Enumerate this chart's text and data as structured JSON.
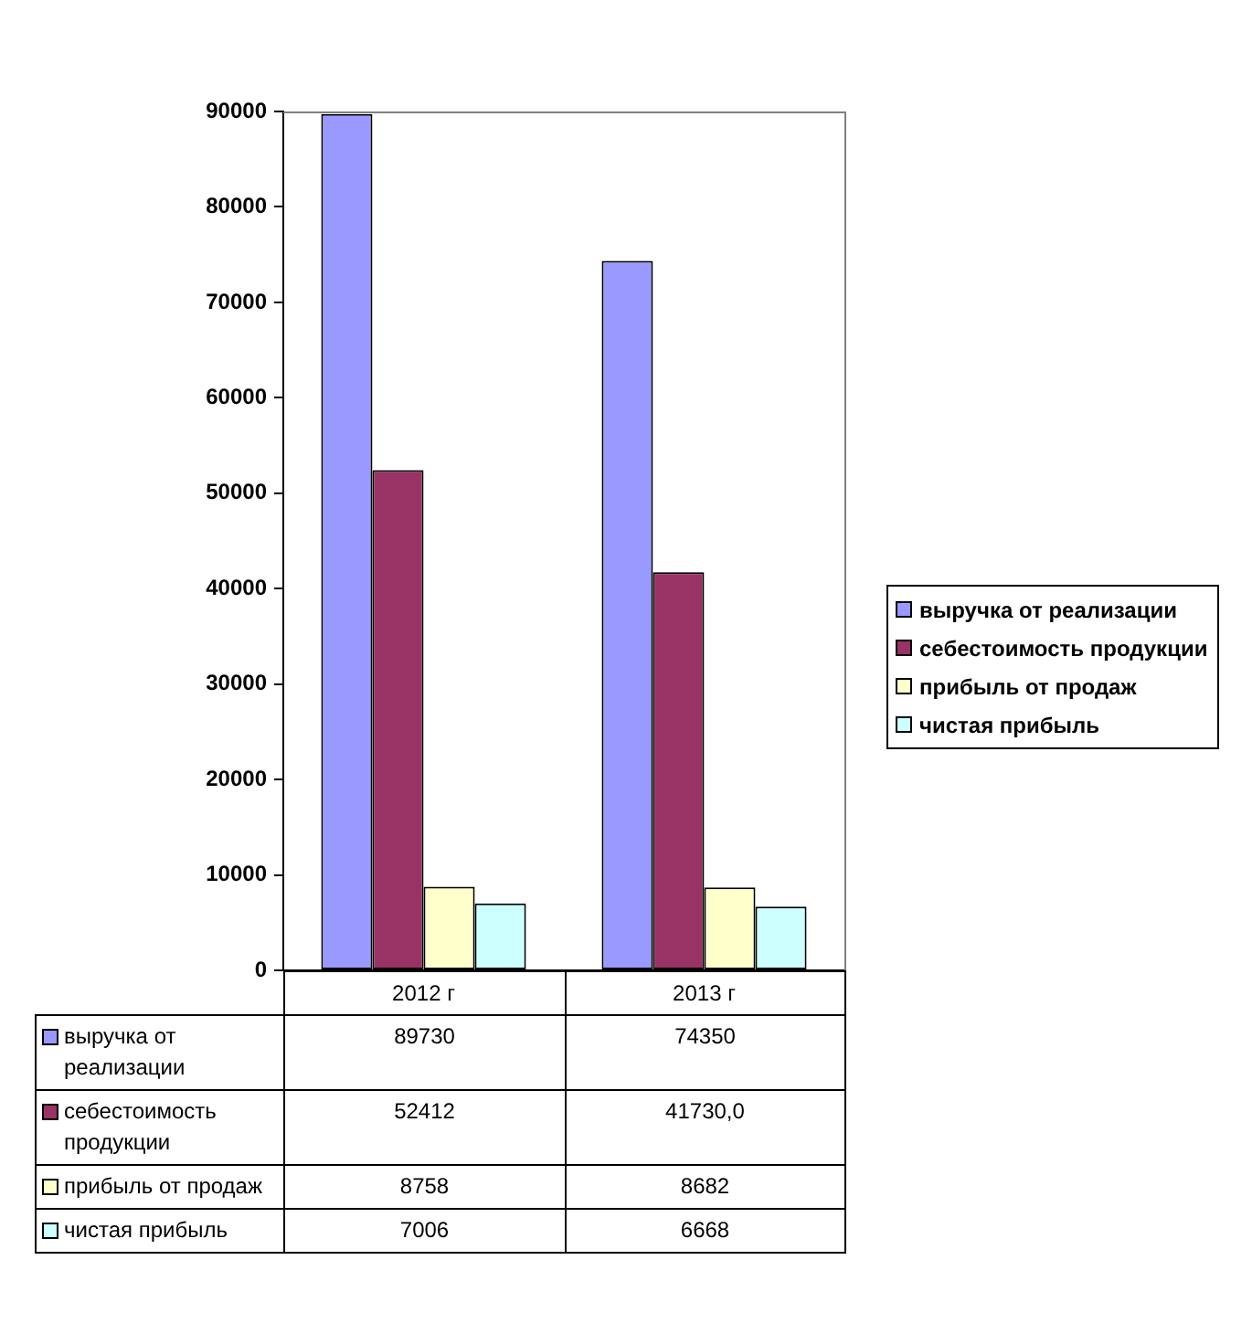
{
  "chart_data": {
    "type": "bar",
    "categories": [
      "2012 г",
      "2013 г"
    ],
    "series": [
      {
        "name": "выручка от реализации",
        "color": "#9999ff",
        "values": [
          89730,
          74350
        ],
        "value_labels": [
          "89730",
          "74350"
        ]
      },
      {
        "name": "себестоимость продукции",
        "color": "#993366",
        "values": [
          52412,
          41730
        ],
        "value_labels": [
          "52412",
          "41730,0"
        ]
      },
      {
        "name": "прибыль от продаж",
        "color": "#ffffcc",
        "values": [
          8758,
          8682
        ],
        "value_labels": [
          "8758",
          "8682"
        ]
      },
      {
        "name": "чистая прибыль",
        "color": "#ccffff",
        "values": [
          7006,
          6668
        ],
        "value_labels": [
          "7006",
          "6668"
        ]
      }
    ],
    "ylim": [
      0,
      90000
    ],
    "yticks": [
      0,
      10000,
      20000,
      30000,
      40000,
      50000,
      60000,
      70000,
      80000,
      90000
    ],
    "grid": false,
    "legend": "right"
  }
}
